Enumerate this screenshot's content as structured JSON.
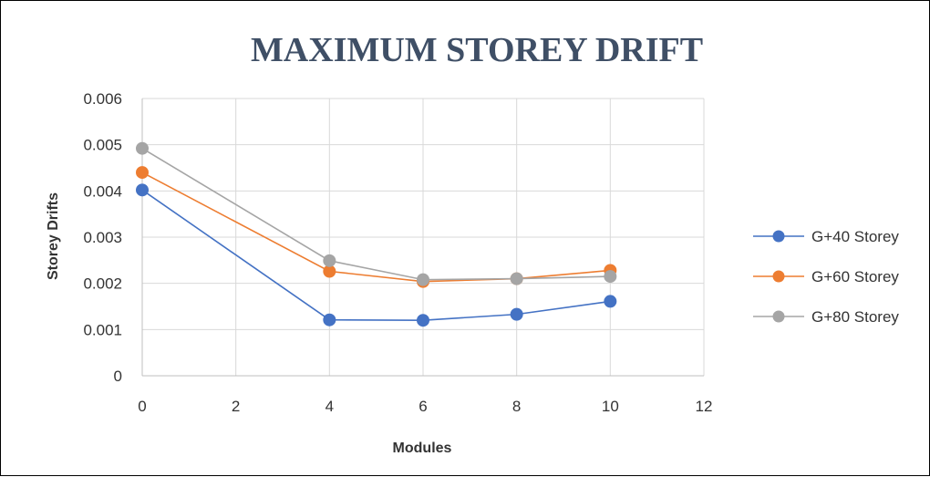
{
  "chart_data": {
    "type": "line",
    "title": "MAXIMUM STOREY DRIFT",
    "xlabel": "Modules",
    "ylabel": "Storey Drifts",
    "xlim": [
      0,
      12
    ],
    "ylim": [
      0,
      0.006
    ],
    "x_ticks": [
      "0",
      "2",
      "4",
      "6",
      "8",
      "10",
      "12"
    ],
    "y_ticks": [
      "0",
      "0.001",
      "0.002",
      "0.003",
      "0.004",
      "0.005",
      "0.006"
    ],
    "x": [
      0,
      4,
      6,
      8,
      10
    ],
    "grid": true,
    "legend_position": "right",
    "series": [
      {
        "name": "G+40 Storey",
        "color": "#4472c4",
        "values": [
          0.00402,
          0.00121,
          0.0012,
          0.00133,
          0.00161
        ]
      },
      {
        "name": "G+60 Storey",
        "color": "#ed7d31",
        "values": [
          0.0044,
          0.00226,
          0.00204,
          0.0021,
          0.00228
        ]
      },
      {
        "name": "G+80 Storey",
        "color": "#a5a5a5",
        "values": [
          0.00492,
          0.00249,
          0.00208,
          0.0021,
          0.00215
        ]
      }
    ]
  }
}
